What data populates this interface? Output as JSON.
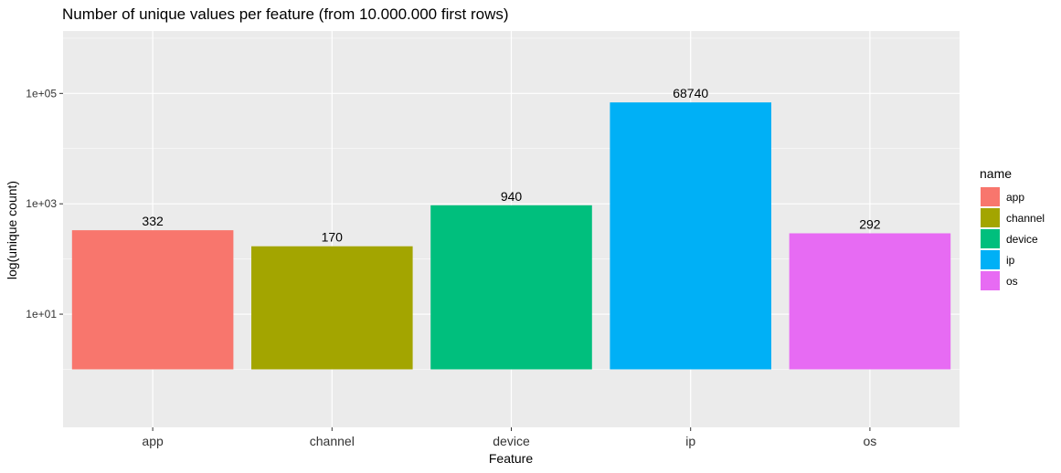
{
  "chart_data": {
    "type": "bar",
    "title": "Number of unique values per feature (from 10.000.000 first rows)",
    "xlabel": "Feature",
    "ylabel": "log(unique count)",
    "y_scale": "log10",
    "ylim": [
      0.089,
      1350000
    ],
    "y_ticks": [
      10,
      1000,
      100000
    ],
    "y_tick_labels": [
      "1e+01",
      "1e+03",
      "1e+05"
    ],
    "grid": true,
    "legend_position": "right",
    "legend_title": "name",
    "categories": [
      "app",
      "channel",
      "device",
      "ip",
      "os"
    ],
    "values": [
      332,
      170,
      940,
      68740,
      292
    ],
    "data_labels": [
      "332",
      "170",
      "940",
      "68740",
      "292"
    ],
    "colors": [
      "#F8766D",
      "#A3A500",
      "#00BF7D",
      "#00B0F6",
      "#E76BF3"
    ],
    "panel_background": "#EBEBEB",
    "grid_color": "#FFFFFF"
  }
}
